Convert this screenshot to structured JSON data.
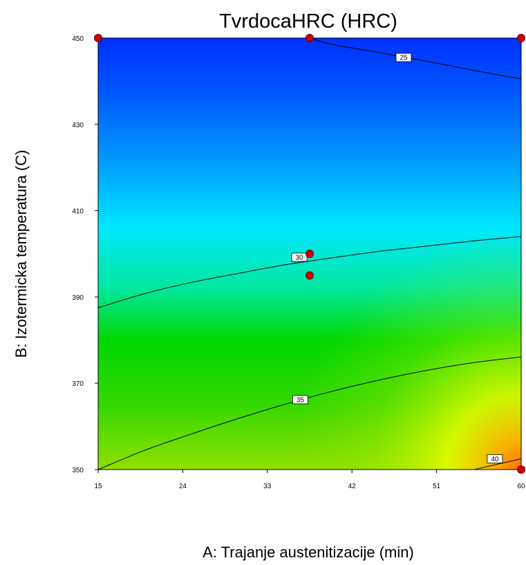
{
  "chart_data": {
    "type": "contour",
    "title": "TvrdocaHRC (HRC)",
    "xlabel": "A: Trajanje austenitizacije (min)",
    "ylabel": "B: Izotermicka temperatura (C)",
    "xlim": [
      15,
      60
    ],
    "ylim": [
      350,
      450
    ],
    "x_ticks": [
      15,
      24,
      33,
      42,
      51,
      60
    ],
    "y_ticks": [
      350,
      370,
      390,
      410,
      430,
      450
    ],
    "x_tick_labels": [
      "15",
      "24",
      "33",
      "42",
      "51",
      "60"
    ],
    "y_tick_labels": [
      "350",
      "370",
      "390",
      "410",
      "430",
      "450"
    ],
    "contours": [
      {
        "level": "25",
        "points": [
          [
            37.5,
            450
          ],
          [
            40,
            448.5
          ],
          [
            45,
            446.6
          ],
          [
            50,
            444.6
          ],
          [
            55,
            442.5
          ],
          [
            60,
            440.5
          ]
        ],
        "label_at": [
          47.5,
          445.5
        ]
      },
      {
        "level": "30",
        "points": [
          [
            15,
            387.5
          ],
          [
            20,
            390.8
          ],
          [
            25,
            393.4
          ],
          [
            30,
            395.5
          ],
          [
            35,
            397.5
          ],
          [
            40,
            399.1
          ],
          [
            45,
            400.6
          ],
          [
            50,
            401.8
          ],
          [
            55,
            403
          ],
          [
            60,
            404
          ]
        ],
        "label_at": [
          36.4,
          399.2
        ]
      },
      {
        "level": "35",
        "points": [
          [
            15,
            350
          ],
          [
            20,
            354.5
          ],
          [
            25,
            358.3
          ],
          [
            30,
            361.9
          ],
          [
            35,
            365.2
          ],
          [
            40,
            368.2
          ],
          [
            45,
            370.8
          ],
          [
            50,
            373
          ],
          [
            55,
            374.8
          ],
          [
            60,
            376.1
          ]
        ],
        "label_at": [
          36.5,
          366.2
        ]
      },
      {
        "level": "40",
        "points": [
          [
            55,
            350
          ],
          [
            57,
            351
          ],
          [
            59,
            352
          ],
          [
            60,
            352.5
          ]
        ],
        "label_at": [
          57.2,
          352.5
        ]
      }
    ],
    "design_points": [
      [
        15,
        450
      ],
      [
        37.5,
        450
      ],
      [
        60,
        450
      ],
      [
        37.5,
        400
      ],
      [
        37.5,
        395
      ],
      [
        60,
        350
      ]
    ],
    "colors": {
      "top": "#0030ff",
      "cyan": "#00e8ff",
      "green": "#00d000",
      "yellow": "#f0ff00",
      "orange": "#ff6a00",
      "contour_line": "#000000",
      "design_point": "#cc0000",
      "label_bg": "#ffffff"
    }
  }
}
